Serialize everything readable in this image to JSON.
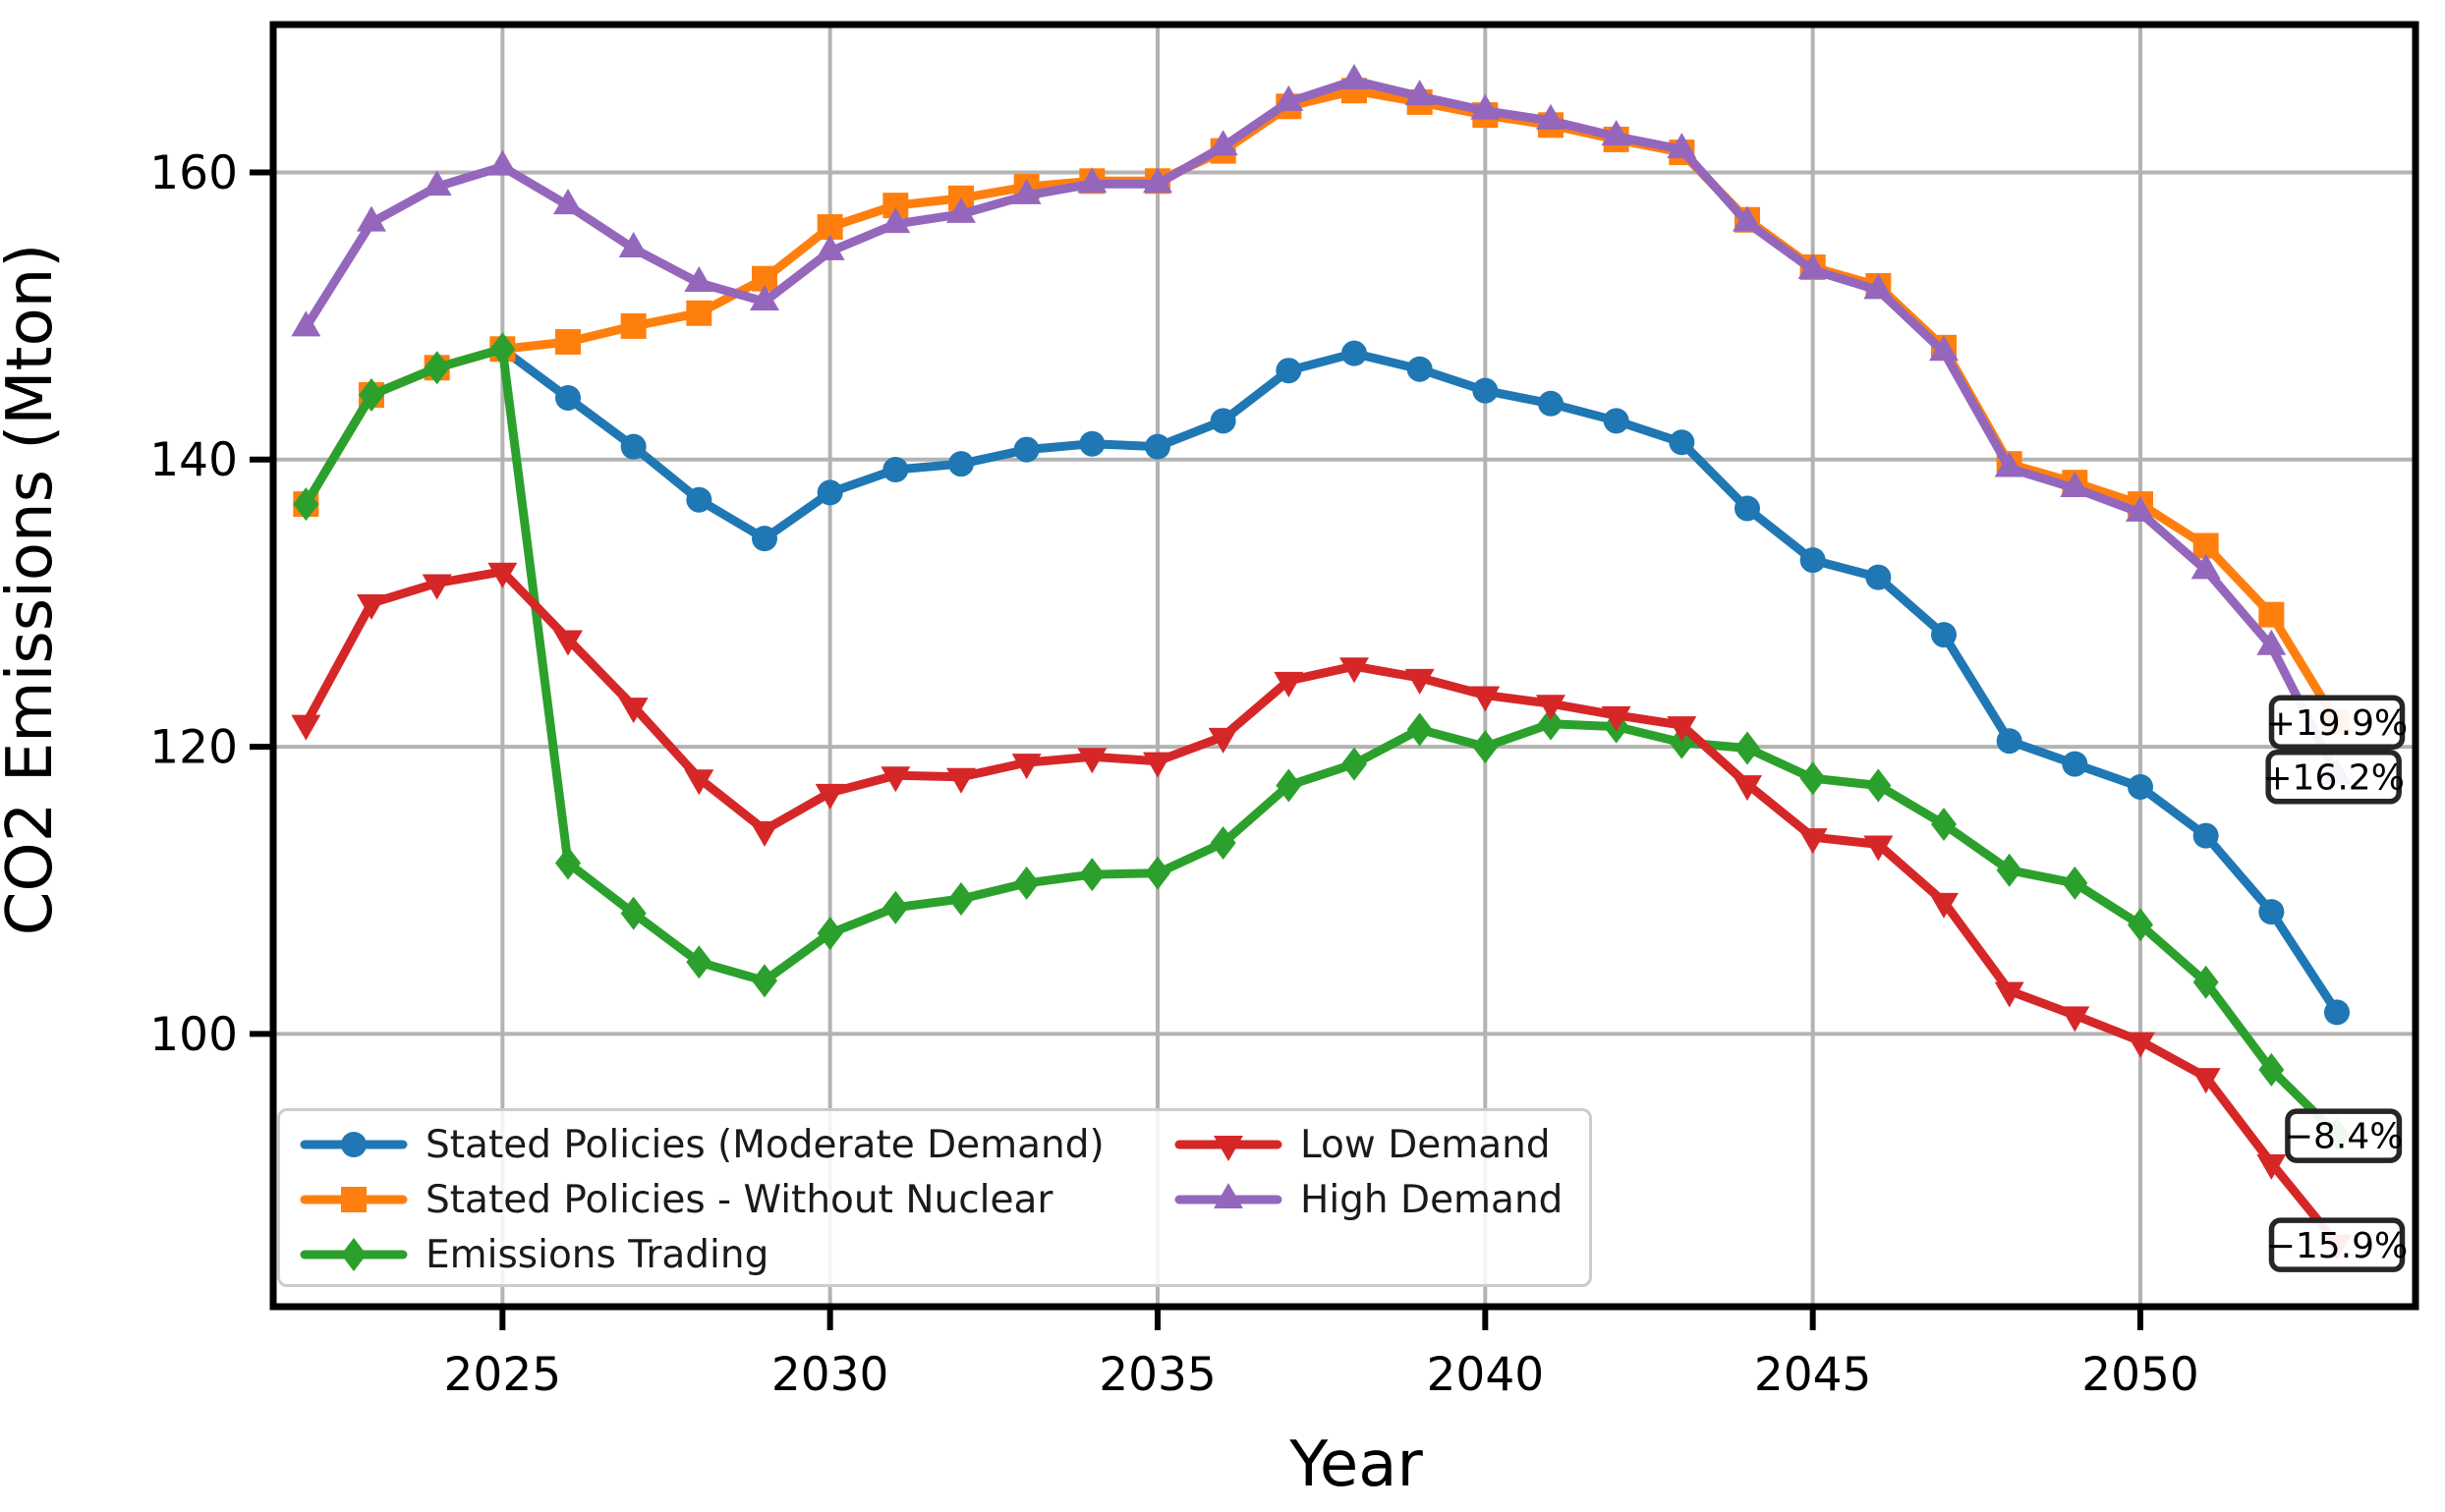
{
  "page": {
    "background": "#ffffff"
  },
  "chart_data": {
    "type": "line",
    "title": "",
    "xlabel": "Year",
    "ylabel": "CO2 Emissions (Mton)",
    "x": [
      2022,
      2023,
      2024,
      2025,
      2026,
      2027,
      2028,
      2029,
      2030,
      2031,
      2032,
      2033,
      2034,
      2035,
      2036,
      2037,
      2038,
      2039,
      2040,
      2041,
      2042,
      2043,
      2044,
      2045,
      2046,
      2047,
      2048,
      2049,
      2050,
      2051,
      2052,
      2053
    ],
    "xlim": [
      2021.5,
      2054.2
    ],
    "ylim": [
      81,
      170.3
    ],
    "xticks": [
      2025,
      2030,
      2035,
      2040,
      2045,
      2050
    ],
    "yticks": [
      100,
      120,
      140,
      160
    ],
    "grid": true,
    "grid_color": "#b3b3b3",
    "axis_color": "#000000",
    "legend_position": "lower-left",
    "legend_columns": 2,
    "series": [
      {
        "name": "Stated Policies (Moderate Demand)",
        "color": "#1f77b4",
        "marker": "circle",
        "values": [
          136.9,
          144.5,
          146.4,
          147.7,
          144.3,
          140.9,
          137.2,
          134.5,
          137.7,
          139.3,
          139.7,
          140.7,
          141.1,
          140.9,
          142.7,
          146.2,
          147.4,
          146.3,
          144.8,
          143.9,
          142.7,
          141.2,
          136.6,
          133.0,
          131.8,
          127.8,
          120.4,
          118.8,
          117.2,
          113.8,
          108.5,
          101.5
        ]
      },
      {
        "name": "Stated Policies - Without Nuclear",
        "color": "#ff7f0e",
        "marker": "square",
        "values": [
          136.9,
          144.5,
          146.4,
          147.7,
          148.2,
          149.3,
          150.2,
          152.6,
          156.2,
          157.7,
          158.2,
          159.0,
          159.4,
          159.4,
          161.5,
          164.6,
          165.7,
          164.9,
          164.0,
          163.3,
          162.3,
          161.4,
          156.7,
          153.4,
          152.1,
          147.8,
          139.7,
          138.4,
          136.9,
          134.0,
          129.2,
          121.7
        ]
      },
      {
        "name": "Emissions Trading",
        "color": "#2ca02c",
        "marker": "diamond",
        "values": [
          136.9,
          144.5,
          146.4,
          147.7,
          111.9,
          108.4,
          105.0,
          103.7,
          107.0,
          108.8,
          109.4,
          110.5,
          111.1,
          111.2,
          113.3,
          117.3,
          118.8,
          121.2,
          120.0,
          121.6,
          121.4,
          120.3,
          119.9,
          117.8,
          117.3,
          114.6,
          111.4,
          110.5,
          107.6,
          103.6,
          97.5,
          93.0
        ]
      },
      {
        "name": "Low Demand",
        "color": "#d62728",
        "marker": "triangle-down",
        "values": [
          121.6,
          130.0,
          131.4,
          132.2,
          127.5,
          122.8,
          117.8,
          114.2,
          116.8,
          118.0,
          117.9,
          118.9,
          119.3,
          119.0,
          120.7,
          124.6,
          125.6,
          124.8,
          123.6,
          123.0,
          122.2,
          121.5,
          117.4,
          113.7,
          113.2,
          109.2,
          103.0,
          101.3,
          99.5,
          97.0,
          91.0,
          85.4
        ]
      },
      {
        "name": "High Demand",
        "color": "#9467bd",
        "marker": "triangle-up",
        "values": [
          149.2,
          156.5,
          159.0,
          160.4,
          157.7,
          154.7,
          152.3,
          151.0,
          154.5,
          156.4,
          157.1,
          158.4,
          159.2,
          159.2,
          161.8,
          164.9,
          166.4,
          165.3,
          164.3,
          163.6,
          162.5,
          161.6,
          156.5,
          153.2,
          151.8,
          147.5,
          139.4,
          138.0,
          136.3,
          132.3,
          127.0,
          118.0
        ]
      }
    ],
    "annotations": [
      {
        "text": "+19.9%",
        "x": 2053.0,
        "y": 121.7
      },
      {
        "text": "+16.2%",
        "x": 2052.95,
        "y": 117.9
      },
      {
        "text": "−8.4%",
        "x": 2053.1,
        "y": 92.9
      },
      {
        "text": "−15.9%",
        "x": 2053.0,
        "y": 85.3
      }
    ]
  }
}
